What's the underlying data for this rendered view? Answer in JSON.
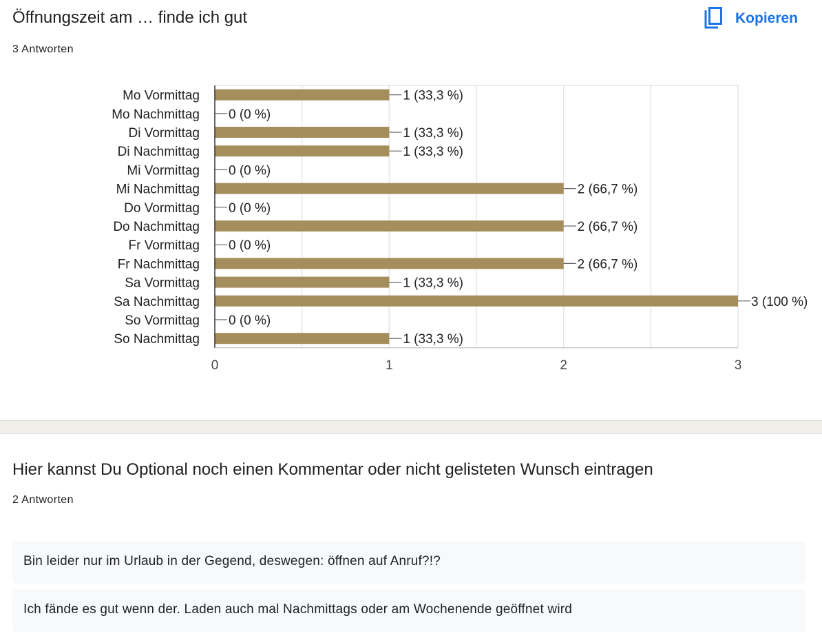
{
  "question1": {
    "title": "Öffnungszeit am … finde ich gut",
    "response_count": "3 Antworten",
    "copy_label": "Kopieren",
    "copy_icon": "copy-icon"
  },
  "question2": {
    "title": "Hier kannst Du Optional noch einen Kommentar oder nicht gelisteten Wunsch eintragen",
    "response_count": "2 Antworten",
    "responses": [
      "Bin leider nur im Urlaub in der Gegend, deswegen: öffnen auf Anruf?!?",
      "Ich fände es gut wenn der. Laden auch mal Nachmittags oder am Wochenende geöffnet wird"
    ]
  },
  "colors": {
    "bar": "#a58d5c",
    "accent": "#1a73e8",
    "grid": "#e6e6e6"
  },
  "chart_data": {
    "type": "bar",
    "orientation": "horizontal",
    "categories": [
      "Mo Vormittag",
      "Mo Nachmittag",
      "Di Vormittag",
      "Di Nachmittag",
      "Mi Vormittag",
      "Mi Nachmittag",
      "Do Vormittag",
      "Do Nachmittag",
      "Fr Vormittag",
      "Fr Nachmittag",
      "Sa Vormittag",
      "Sa Nachmittag",
      "So Vormittag",
      "So Nachmittag"
    ],
    "values": [
      1,
      0,
      1,
      1,
      0,
      2,
      0,
      2,
      0,
      2,
      1,
      3,
      0,
      1
    ],
    "data_labels": [
      "1 (33,3 %)",
      "0 (0 %)",
      "1 (33,3 %)",
      "1 (33,3 %)",
      "0 (0 %)",
      "2 (66,7 %)",
      "0 (0 %)",
      "2 (66,7 %)",
      "0 (0 %)",
      "2 (66,7 %)",
      "1 (33,3 %)",
      "3 (100 %)",
      "0 (0 %)",
      "1 (33,3 %)"
    ],
    "x_ticks": [
      "0",
      "1",
      "2",
      "3"
    ],
    "xlim": [
      0,
      3
    ],
    "grid": true
  }
}
